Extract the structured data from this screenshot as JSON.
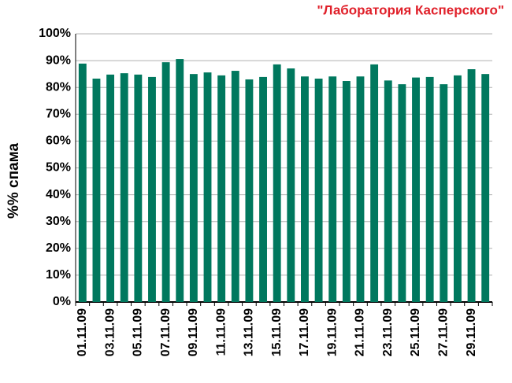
{
  "chart_data": {
    "type": "bar",
    "title": "\"Лаборатория Касперского\"",
    "y_label": "%% спама",
    "categories": [
      "01.11.09",
      null,
      "03.11.09",
      null,
      "05.11.09",
      null,
      "07.11.09",
      null,
      "09.11.09",
      null,
      "11.11.09",
      null,
      "13.11.09",
      null,
      "15.11.09",
      null,
      "17.11.09",
      null,
      "19.11.09",
      null,
      "21.11.09",
      null,
      "23.11.09",
      null,
      "25.11.09",
      null,
      "27.11.09",
      null,
      "29.11.09",
      null
    ],
    "values": [
      88.9,
      83.3,
      84.8,
      85.3,
      84.8,
      83.9,
      89.4,
      90.6,
      85.0,
      85.6,
      84.5,
      86.2,
      83.0,
      83.9,
      88.6,
      87.1,
      84.1,
      83.3,
      84.1,
      82.4,
      84.1,
      88.6,
      82.6,
      81.2,
      83.7,
      83.9,
      81.2,
      84.5,
      86.8,
      85.0
    ],
    "color": "#00785e",
    "ylim": [
      0,
      100
    ],
    "yticks": [
      {
        "value": 0,
        "label": "0%"
      },
      {
        "value": 10,
        "label": "10%"
      },
      {
        "value": 20,
        "label": "20%"
      },
      {
        "value": 30,
        "label": "30%"
      },
      {
        "value": 40,
        "label": "40%"
      },
      {
        "value": 50,
        "label": "50%"
      },
      {
        "value": 60,
        "label": "60%"
      },
      {
        "value": 70,
        "label": "70%"
      },
      {
        "value": 80,
        "label": "80%"
      },
      {
        "value": 90,
        "label": "90%"
      },
      {
        "value": 100,
        "label": "100%"
      }
    ],
    "grid": true
  }
}
